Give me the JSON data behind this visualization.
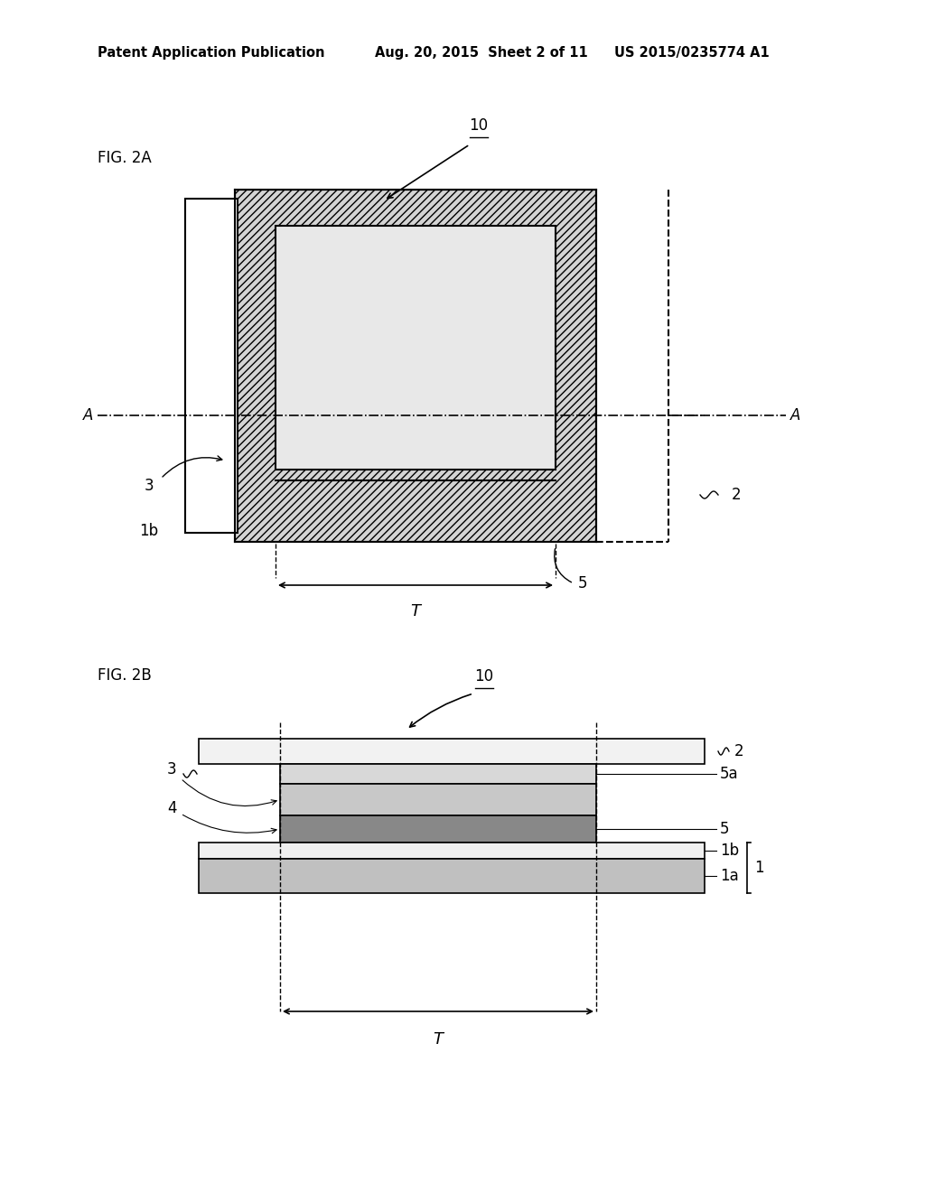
{
  "bg_color": "#ffffff",
  "header_left": "Patent Application Publication",
  "header_mid": "Aug. 20, 2015  Sheet 2 of 11",
  "header_right": "US 2015/0235774 A1",
  "fig2a_label": "FIG. 2A",
  "fig2b_label": "FIG. 2B",
  "label_10a": "10",
  "label_10b": "10",
  "label_2a": "2",
  "label_3a": "3",
  "label_1b_2a": "1b",
  "label_5a": "5",
  "label_Ta": "T",
  "label_A": "A",
  "label_2b": "2",
  "label_3b": "3",
  "label_4b": "4",
  "label_5b": "5",
  "label_5ab": "5a",
  "label_1bb": "1b",
  "label_1ab": "1a",
  "label_1_brace": "1",
  "label_Tb": "T",
  "hatch_diag": "////",
  "hatch_cross": "xxxx",
  "hatch_dots": "....",
  "color_white": "#ffffff",
  "color_hatched_frame": "#d4d4d4",
  "color_inner_dotted": "#e8e8e8",
  "color_layer2": "#f2f2f2",
  "color_layer5a": "#d8d8d8",
  "color_layer3": "#c8c8c8",
  "color_layer5": "#888888",
  "color_layer4": "#e0e0e0",
  "color_layer1b": "#f0f0f0",
  "color_layer1a": "#c0c0c0",
  "line_color": "#000000"
}
